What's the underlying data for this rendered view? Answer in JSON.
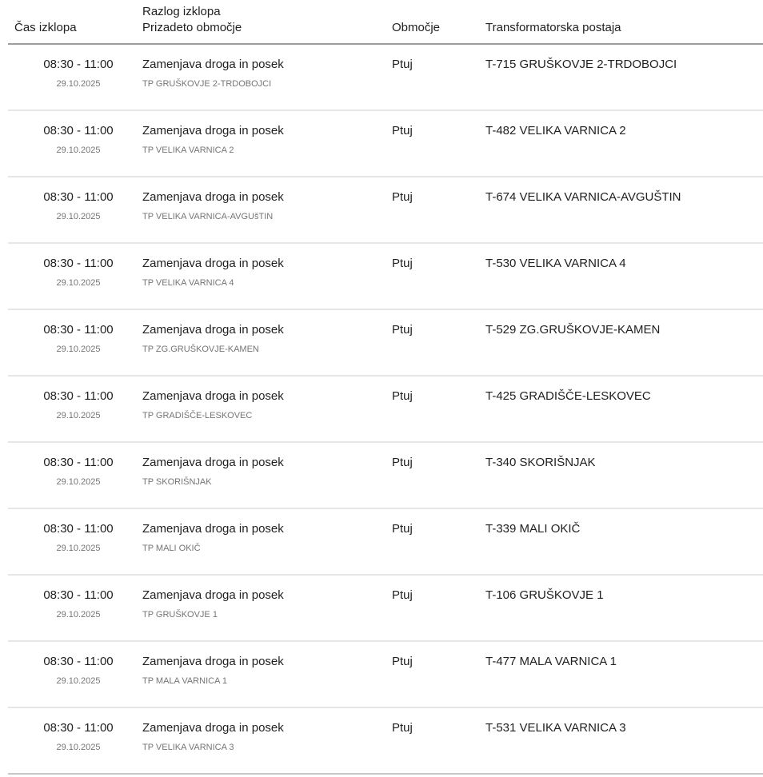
{
  "table": {
    "columns": {
      "time": "Čas izklopa",
      "reason_line1": "Razlog izklopa",
      "reason_line2": "Prizadeto območje",
      "area": "Območje",
      "station": "Transformatorska postaja"
    },
    "rows": [
      {
        "time": "08:30 - 11:00",
        "date": "29.10.2025",
        "reason": "Zamenjava droga in posek",
        "affected": "TP GRUŠKOVJE 2-TRDOBOJCI",
        "area": "Ptuj",
        "station": "T-715 GRUŠKOVJE 2-TRDOBOJCI"
      },
      {
        "time": "08:30 - 11:00",
        "date": "29.10.2025",
        "reason": "Zamenjava droga in posek",
        "affected": "TP VELIKA VARNICA 2",
        "area": "Ptuj",
        "station": "T-482 VELIKA VARNICA 2"
      },
      {
        "time": "08:30 - 11:00",
        "date": "29.10.2025",
        "reason": "Zamenjava droga in posek",
        "affected": "TP VELIKA VARNICA-AVGUšTIN",
        "area": "Ptuj",
        "station": "T-674 VELIKA VARNICA-AVGUŠTIN"
      },
      {
        "time": "08:30 - 11:00",
        "date": "29.10.2025",
        "reason": "Zamenjava droga in posek",
        "affected": "TP VELIKA VARNICA 4",
        "area": "Ptuj",
        "station": "T-530 VELIKA VARNICA 4"
      },
      {
        "time": "08:30 - 11:00",
        "date": "29.10.2025",
        "reason": "Zamenjava droga in posek",
        "affected": "TP ZG.GRUŠKOVJE-KAMEN",
        "area": "Ptuj",
        "station": "T-529 ZG.GRUŠKOVJE-KAMEN"
      },
      {
        "time": "08:30 - 11:00",
        "date": "29.10.2025",
        "reason": "Zamenjava droga in posek",
        "affected": "TP GRADIŠČE-LESKOVEC",
        "area": "Ptuj",
        "station": "T-425 GRADIŠČE-LESKOVEC"
      },
      {
        "time": "08:30 - 11:00",
        "date": "29.10.2025",
        "reason": "Zamenjava droga in posek",
        "affected": "TP SKORIŠNJAK",
        "area": "Ptuj",
        "station": "T-340 SKORIŠNJAK"
      },
      {
        "time": "08:30 - 11:00",
        "date": "29.10.2025",
        "reason": "Zamenjava droga in posek",
        "affected": "TP MALI OKIČ",
        "area": "Ptuj",
        "station": "T-339 MALI OKIČ"
      },
      {
        "time": "08:30 - 11:00",
        "date": "29.10.2025",
        "reason": "Zamenjava droga in posek",
        "affected": "TP GRUŠKOVJE 1",
        "area": "Ptuj",
        "station": "T-106 GRUŠKOVJE 1"
      },
      {
        "time": "08:30 - 11:00",
        "date": "29.10.2025",
        "reason": "Zamenjava droga in posek",
        "affected": "TP MALA VARNICA 1",
        "area": "Ptuj",
        "station": "T-477 MALA VARNICA 1"
      },
      {
        "time": "08:30 - 11:00",
        "date": "29.10.2025",
        "reason": "Zamenjava droga in posek",
        "affected": "TP VELIKA VARNICA 3",
        "area": "Ptuj",
        "station": "T-531 VELIKA VARNICA 3"
      }
    ]
  },
  "colors": {
    "text_primary": "#212121",
    "text_secondary": "#757575",
    "header_divider": "#9e9e9e",
    "row_divider": "#e6e6e6"
  }
}
